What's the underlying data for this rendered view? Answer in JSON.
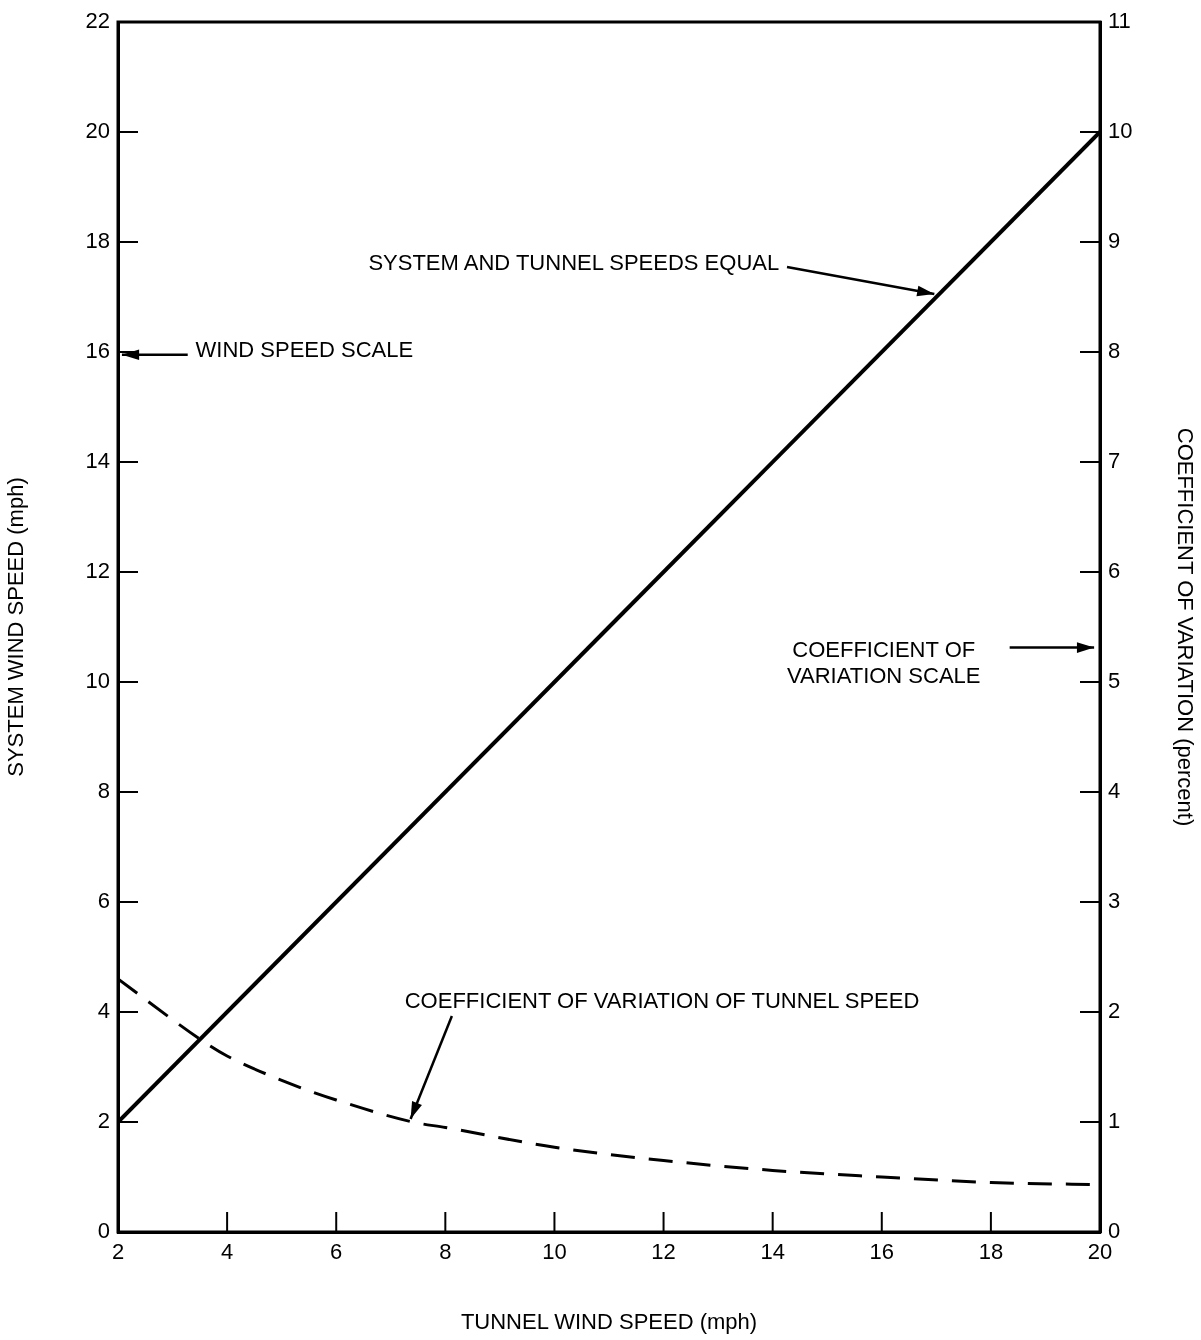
{
  "chart_data": {
    "type": "line",
    "xlabel": "TUNNEL WIND SPEED (mph)",
    "ylabel": "SYSTEM WIND SPEED (mph)",
    "y2label": "COEFFICIENT OF VARIATION (percent)",
    "xlim": [
      2,
      20
    ],
    "xticks": [
      2,
      4,
      6,
      8,
      10,
      12,
      14,
      16,
      18,
      20
    ],
    "ylim": [
      0,
      22
    ],
    "yticks": [
      0,
      2,
      4,
      6,
      8,
      10,
      12,
      14,
      16,
      18,
      20,
      22
    ],
    "y2lim": [
      0,
      11
    ],
    "y2ticks": [
      0,
      1,
      2,
      3,
      4,
      5,
      6,
      7,
      8,
      9,
      10,
      11
    ],
    "grid": false,
    "legend": false,
    "marker": "none",
    "series": [
      {
        "color": "#000000",
        "line_style": "solid",
        "axis": "y",
        "x": [
          2,
          20
        ],
        "values": [
          2,
          20
        ]
      },
      {
        "color": "#000000",
        "line_style": "dashed",
        "axis": "y2",
        "x": [
          2,
          3.6,
          4,
          5.2,
          6,
          7.4,
          8,
          10,
          12,
          14,
          16,
          18,
          20
        ],
        "values": [
          2.3,
          1.72,
          1.6,
          1.34,
          1.2,
          1.0,
          0.95,
          0.77,
          0.65,
          0.56,
          0.5,
          0.45,
          0.43
        ]
      }
    ],
    "annotations": [
      {
        "text": "SYSTEM AND TUNNEL SPEEDS EQUAL",
        "x": 17,
        "y": 17
      },
      {
        "text": "COEFFICIENT OF VARIATION OF TUNNEL SPEED",
        "x": 7.4,
        "y": 2
      },
      "WIND SPEED SCALE",
      "COEFFICIENT OF\nVARIATION SCALE"
    ]
  }
}
